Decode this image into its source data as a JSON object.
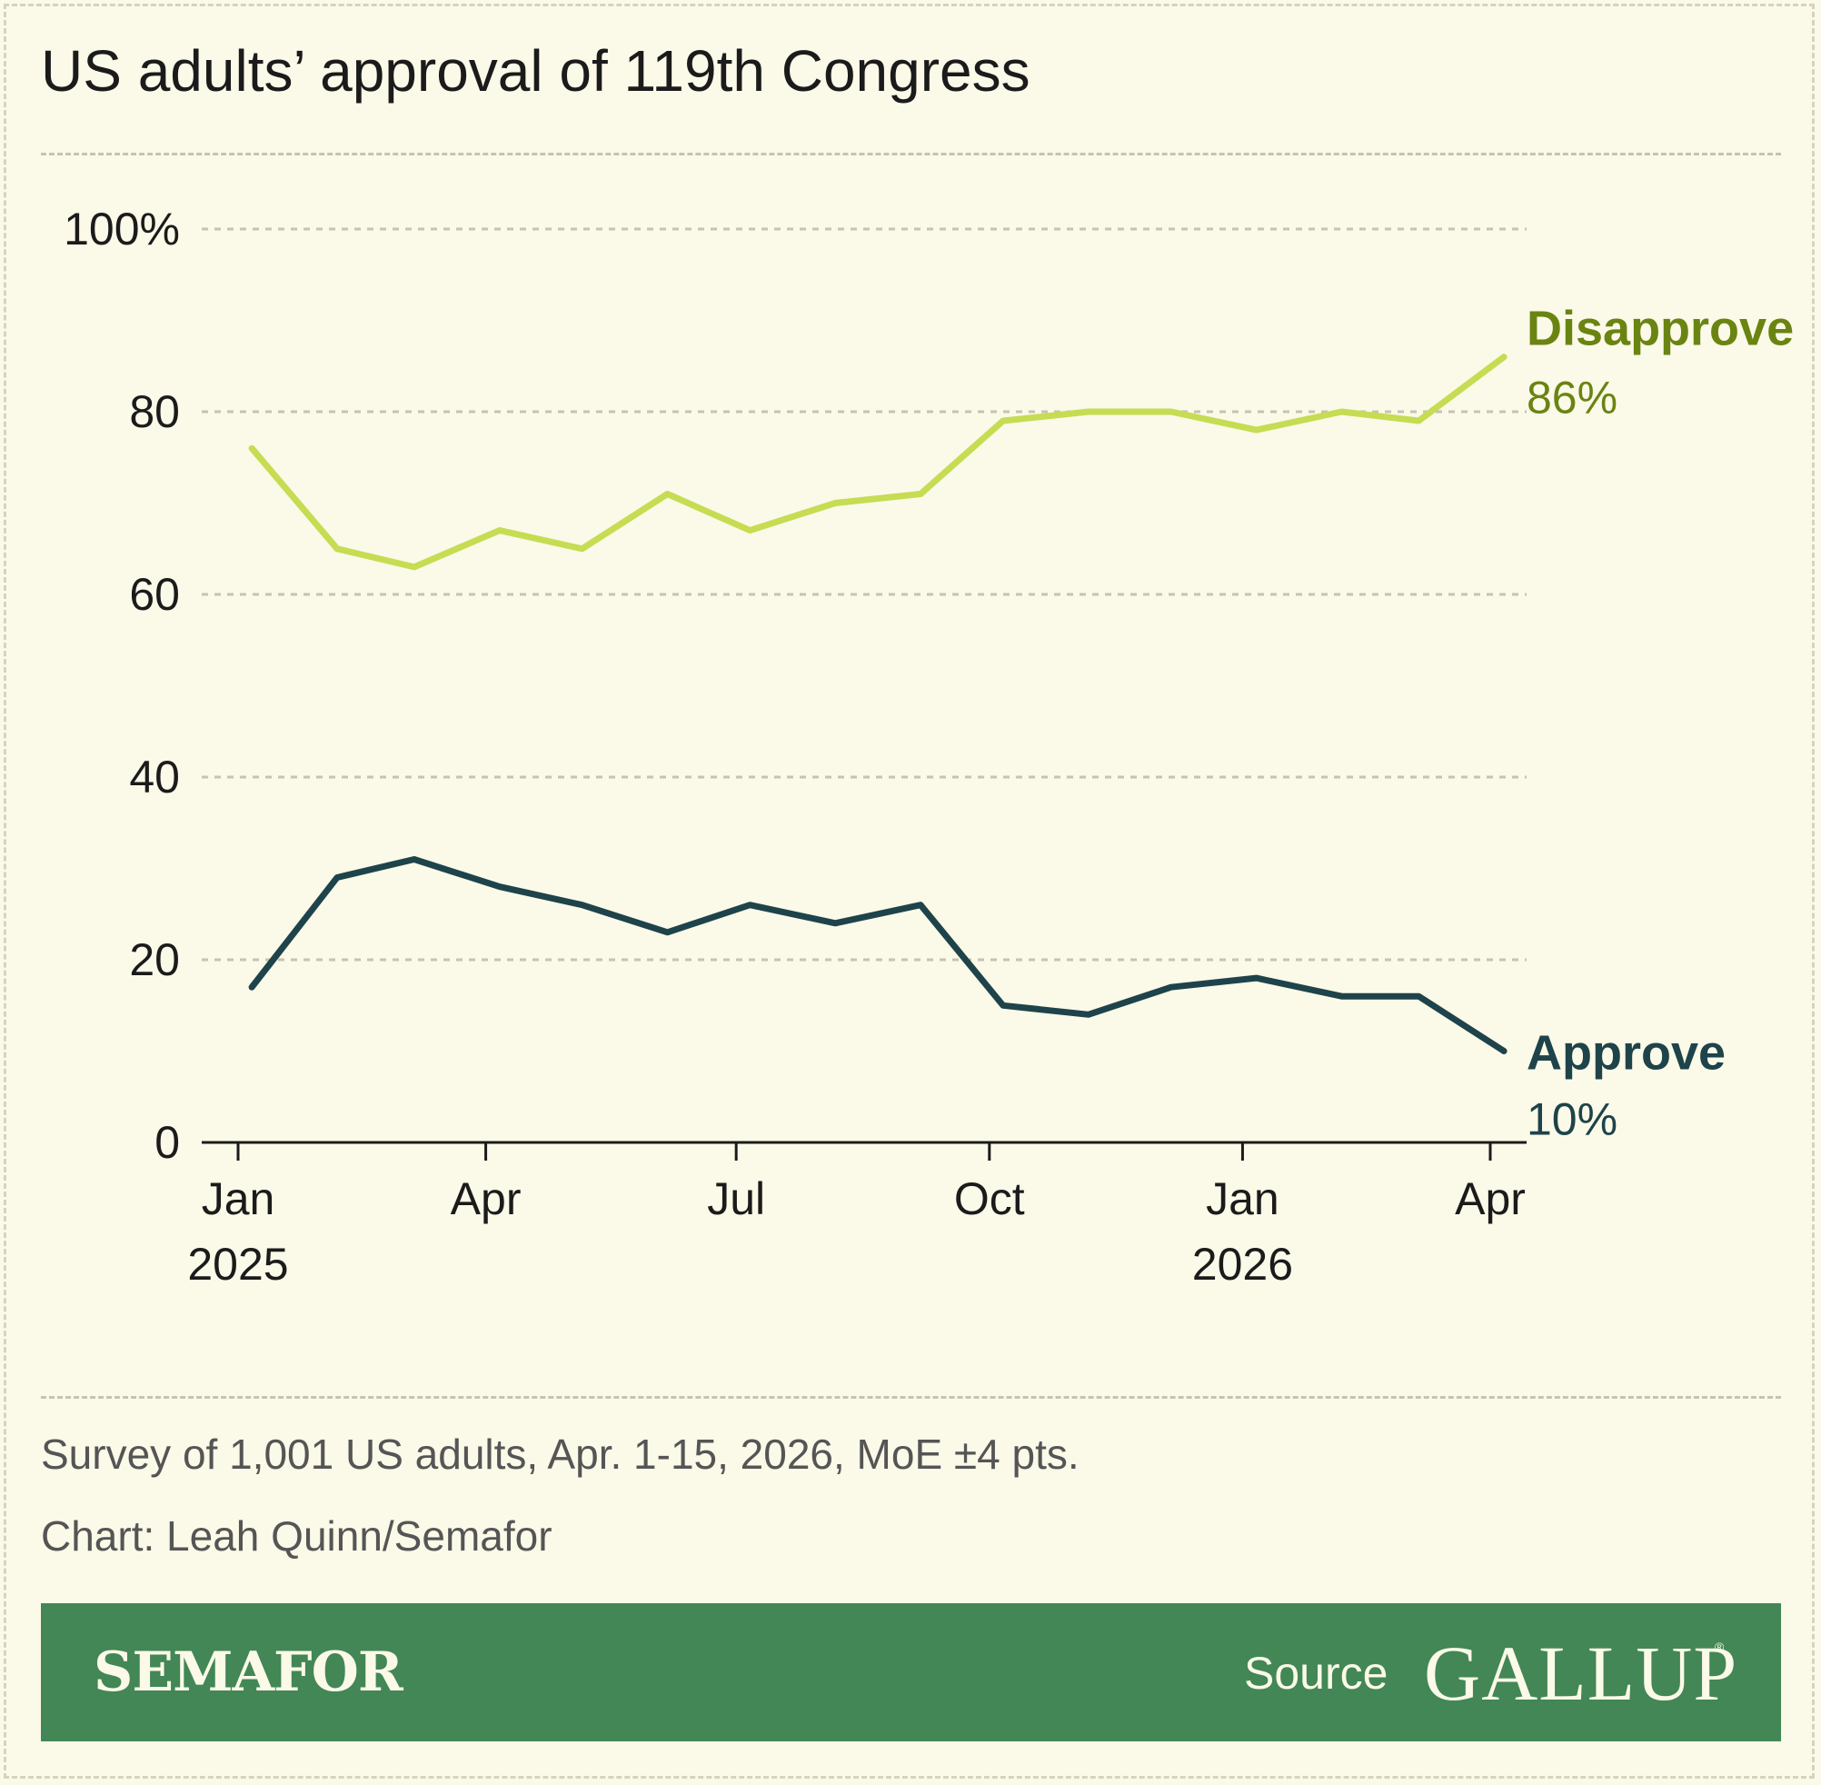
{
  "title": "US adults’ approval of 119th Congress",
  "note": "Survey of 1,001 US adults, Apr. 1-15, 2026, MoE ±4 pts.",
  "credit": "Chart: Leah Quinn/Semafor",
  "footer": {
    "brand": "SEMAFOR",
    "source_label": "Source",
    "source_logo": "GALLUP",
    "source_logo_mark": "®"
  },
  "colors": {
    "background": "#fbf9e8",
    "disapprove_line": "#c6dc52",
    "disapprove_label": "#6a8412",
    "approve_line": "#1e434a",
    "footer_bar": "#428755"
  },
  "chart_data": {
    "type": "line",
    "ylim": [
      0,
      100
    ],
    "y_ticks": [
      0,
      20,
      40,
      60,
      80,
      100
    ],
    "y_tick_labels": [
      "0",
      "20",
      "40",
      "60",
      "80",
      "100%"
    ],
    "x_ticks": [
      {
        "date": "2025-01",
        "label": "Jan",
        "sublabel": "2025"
      },
      {
        "date": "2025-04",
        "label": "Apr",
        "sublabel": ""
      },
      {
        "date": "2025-07",
        "label": "Jul",
        "sublabel": ""
      },
      {
        "date": "2025-10",
        "label": "Oct",
        "sublabel": ""
      },
      {
        "date": "2026-01",
        "label": "Jan",
        "sublabel": "2026"
      },
      {
        "date": "2026-04",
        "label": "Apr",
        "sublabel": ""
      }
    ],
    "x": [
      "2025-01-06",
      "2025-02-06",
      "2025-03-06",
      "2025-04-06",
      "2025-05-06",
      "2025-06-06",
      "2025-07-06",
      "2025-08-06",
      "2025-09-06",
      "2025-10-06",
      "2025-11-06",
      "2025-12-06",
      "2026-01-06",
      "2026-02-06",
      "2026-03-06",
      "2026-04-06"
    ],
    "grid": true,
    "series": [
      {
        "name": "Disapprove",
        "end_label": "86%",
        "values": [
          76,
          65,
          63,
          67,
          65,
          71,
          67,
          70,
          71,
          79,
          80,
          80,
          78,
          80,
          79,
          86
        ]
      },
      {
        "name": "Approve",
        "end_label": "10%",
        "values": [
          17,
          29,
          31,
          28,
          26,
          23,
          26,
          24,
          26,
          15,
          14,
          17,
          18,
          16,
          16,
          10
        ]
      }
    ]
  }
}
